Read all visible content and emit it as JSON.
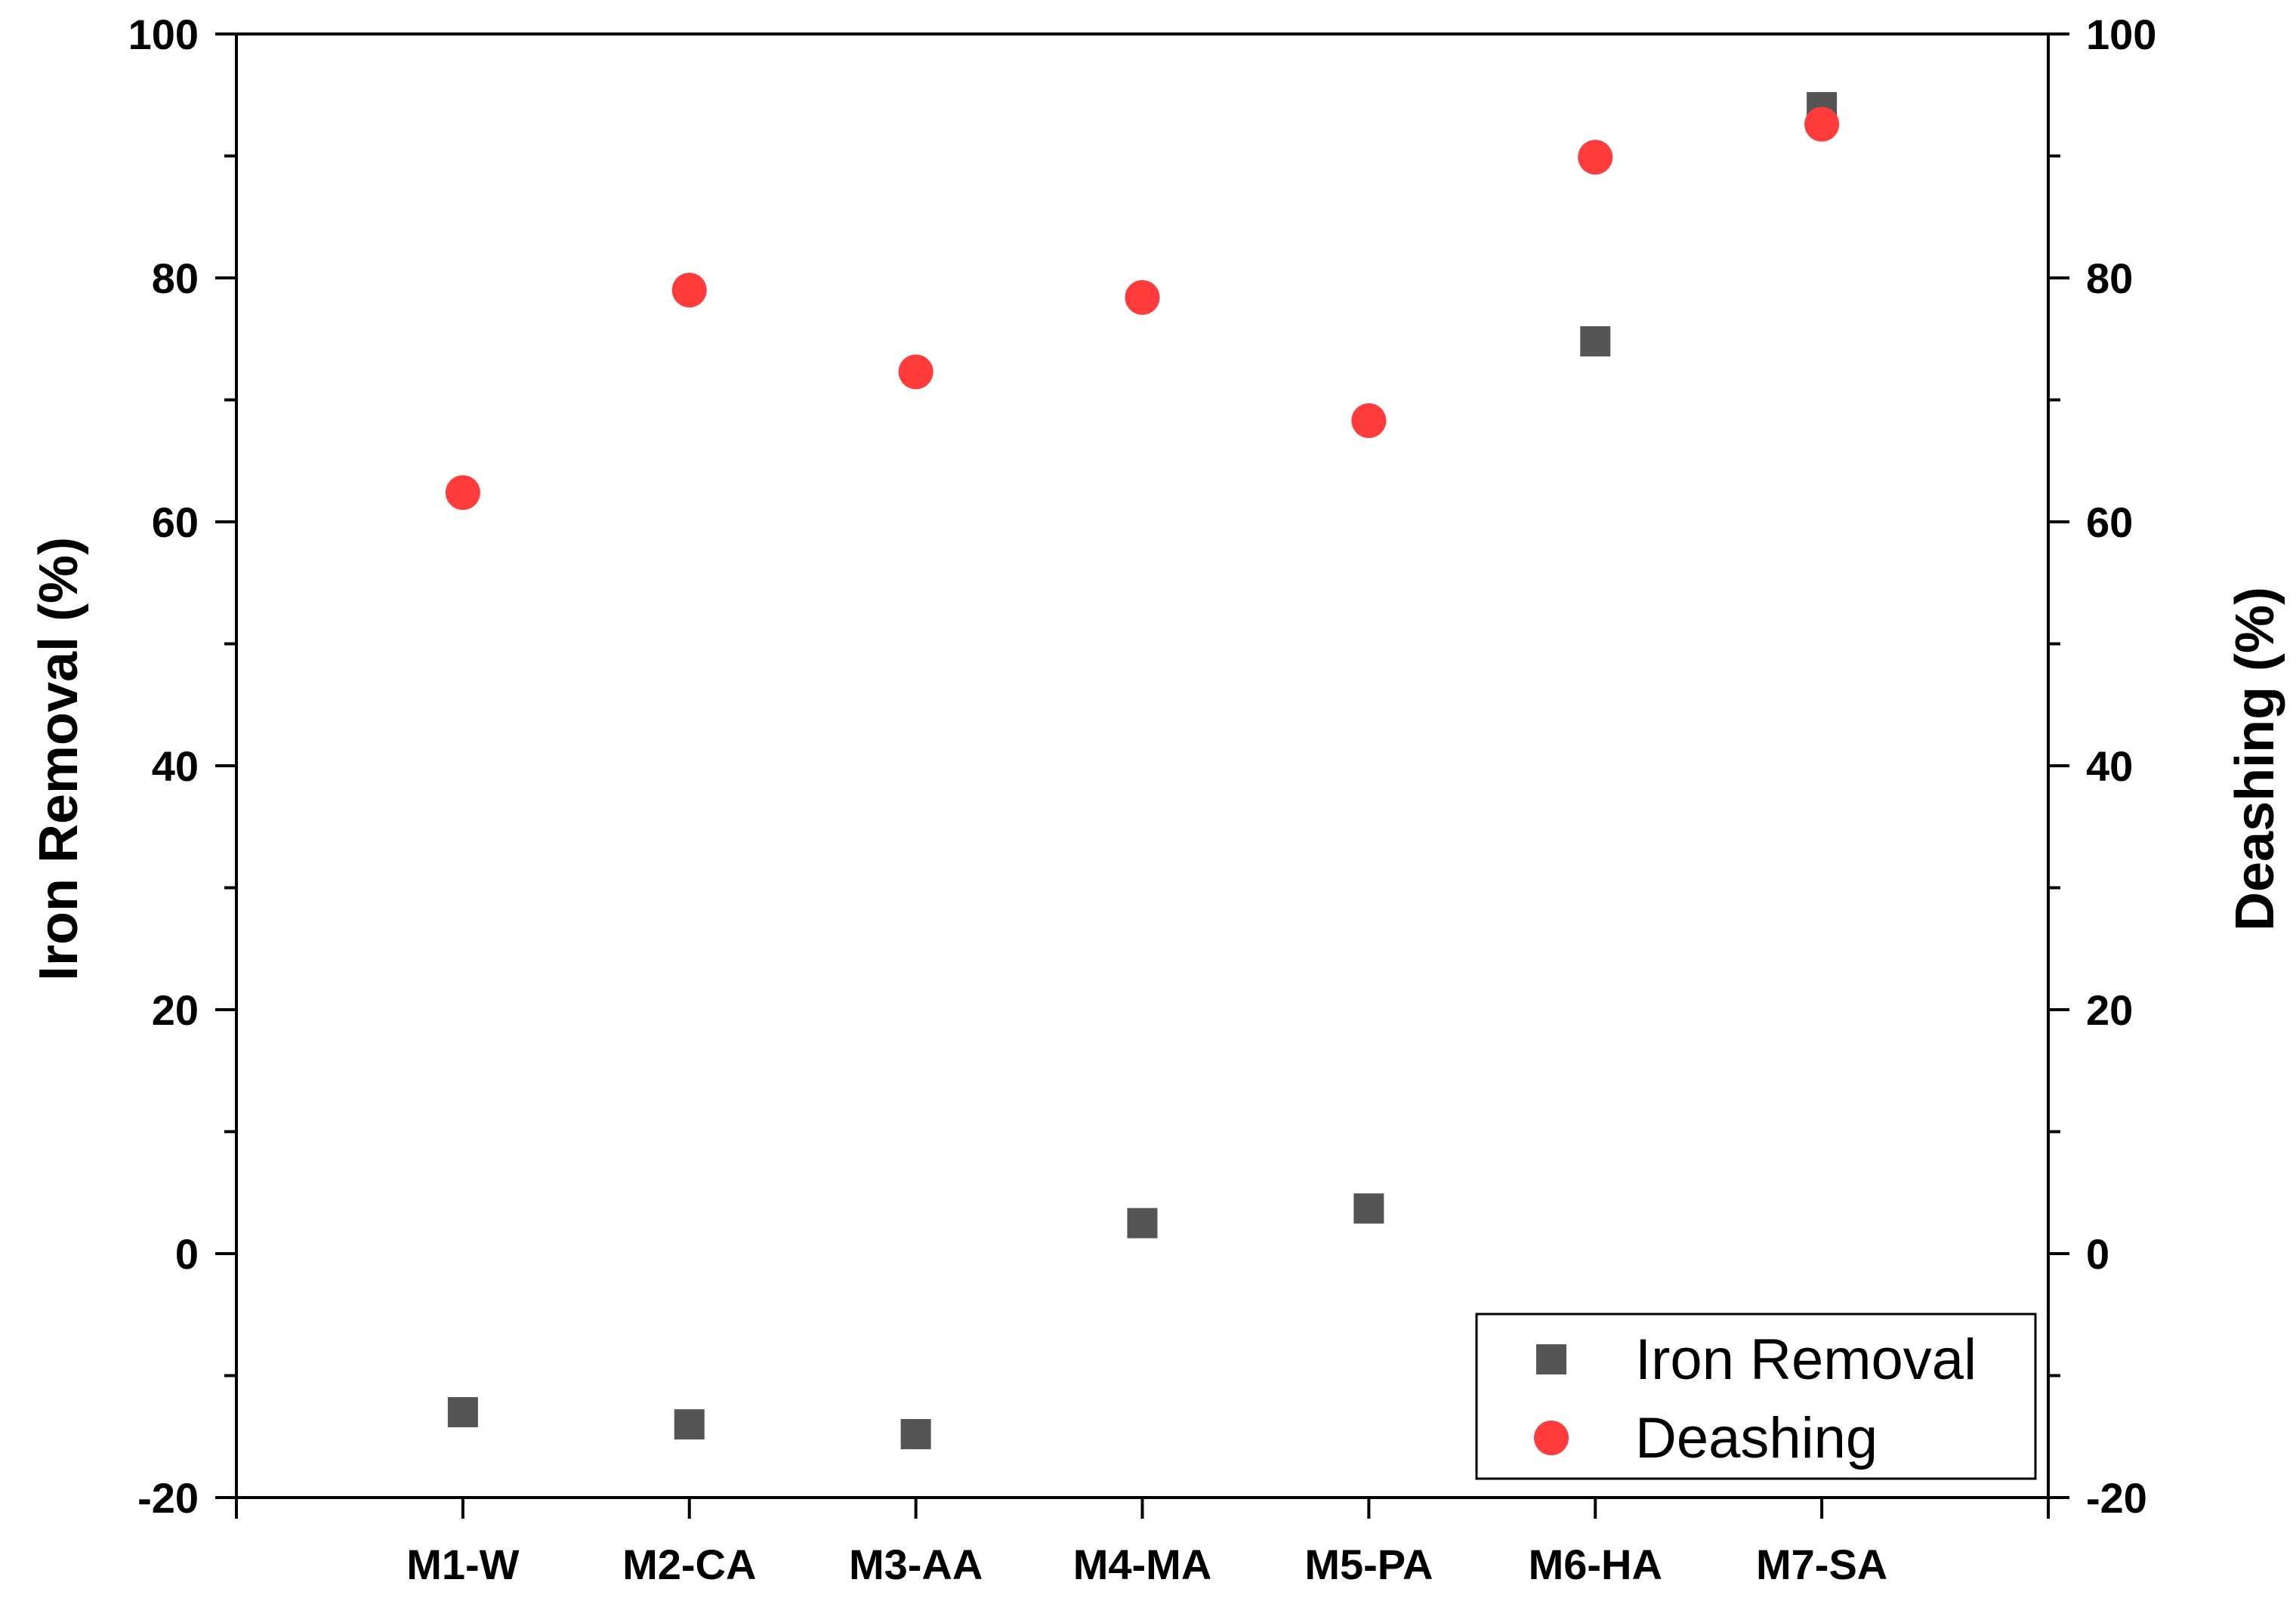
{
  "chart_data": {
    "type": "scatter",
    "categories": [
      "M1-W",
      "M2-CA",
      "M3-AA",
      "M4-MA",
      "M5-PA",
      "M6-HA",
      "M7-SA"
    ],
    "series": [
      {
        "name": "Iron Removal",
        "axis": "left",
        "marker": "square",
        "color": "#555555",
        "values": [
          -13.0,
          -14.0,
          -14.8,
          2.5,
          3.7,
          74.8,
          94.0
        ]
      },
      {
        "name": "Deashing",
        "axis": "right",
        "marker": "circle",
        "color": "#ff3b3b",
        "values": [
          62.4,
          79.0,
          72.3,
          78.4,
          68.3,
          89.9,
          92.6
        ]
      }
    ],
    "ylabel_left": "Iron Removal (%)",
    "ylabel_right": "Deashing (%)",
    "xlabel": "",
    "ylim_left": [
      -20,
      100
    ],
    "ylim_right": [
      -20,
      100
    ],
    "yticks": [
      -20,
      0,
      20,
      40,
      60,
      80,
      100
    ],
    "ytick_labels": [
      "-20",
      "0",
      "20",
      "40",
      "60",
      "80",
      "100"
    ],
    "grid": false,
    "legend_position": "bottom-right"
  }
}
